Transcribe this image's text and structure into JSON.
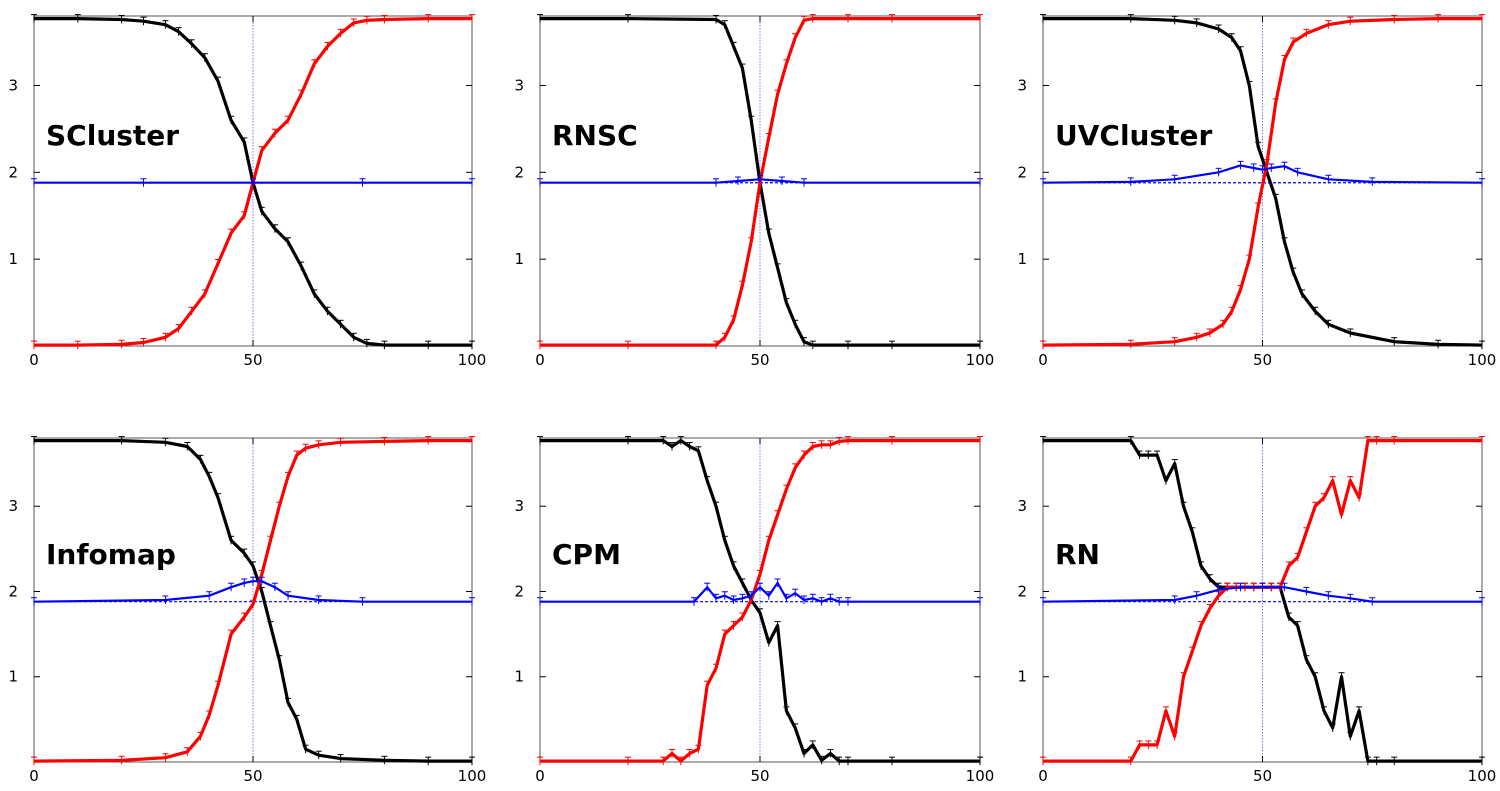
{
  "chart_data": [
    {
      "type": "line",
      "title": "SCluster",
      "xlim": [
        0,
        100
      ],
      "ylim": [
        0,
        3.8
      ],
      "xticks": [
        "0",
        "50",
        "100"
      ],
      "yticks": [
        "1",
        "2",
        "3"
      ],
      "grid": false,
      "reference_line_x": 50,
      "series": [
        {
          "color": "#000000",
          "x": [
            0,
            10,
            20,
            25,
            30,
            33,
            36,
            39,
            42,
            45,
            48,
            50,
            52,
            55,
            58,
            61,
            64,
            67,
            70,
            73,
            76,
            80,
            90,
            100
          ],
          "y": [
            3.77,
            3.77,
            3.76,
            3.74,
            3.7,
            3.62,
            3.48,
            3.32,
            3.05,
            2.6,
            2.35,
            1.88,
            1.55,
            1.35,
            1.2,
            0.92,
            0.6,
            0.4,
            0.25,
            0.1,
            0.03,
            0.01,
            0.01,
            0.01
          ]
        },
        {
          "color": "#ff0000",
          "x": [
            0,
            10,
            20,
            25,
            30,
            33,
            36,
            39,
            42,
            45,
            48,
            50,
            52,
            55,
            58,
            61,
            64,
            67,
            70,
            73,
            76,
            80,
            90,
            100
          ],
          "y": [
            0.01,
            0.01,
            0.02,
            0.04,
            0.1,
            0.2,
            0.4,
            0.6,
            0.95,
            1.3,
            1.5,
            1.88,
            2.25,
            2.45,
            2.6,
            2.9,
            3.25,
            3.45,
            3.6,
            3.72,
            3.75,
            3.76,
            3.77,
            3.77
          ]
        },
        {
          "color": "#0000ff",
          "x": [
            0,
            25,
            50,
            75,
            100
          ],
          "y": [
            1.88,
            1.88,
            1.88,
            1.88,
            1.88
          ]
        }
      ]
    },
    {
      "type": "line",
      "title": "RNSC",
      "xlim": [
        0,
        100
      ],
      "ylim": [
        0,
        3.8
      ],
      "xticks": [
        "0",
        "50",
        "100"
      ],
      "yticks": [
        "1",
        "2",
        "3"
      ],
      "grid": false,
      "reference_line_x": 50,
      "series": [
        {
          "color": "#000000",
          "x": [
            0,
            20,
            40,
            42,
            44,
            46,
            48,
            50,
            52,
            54,
            56,
            58,
            60,
            62,
            70,
            80,
            100
          ],
          "y": [
            3.77,
            3.77,
            3.76,
            3.7,
            3.45,
            3.2,
            2.6,
            1.88,
            1.3,
            0.9,
            0.5,
            0.25,
            0.05,
            0.01,
            0.01,
            0.01,
            0.01
          ]
        },
        {
          "color": "#ff0000",
          "x": [
            0,
            20,
            40,
            42,
            44,
            46,
            48,
            50,
            52,
            54,
            56,
            58,
            60,
            62,
            70,
            80,
            100
          ],
          "y": [
            0.01,
            0.01,
            0.01,
            0.1,
            0.3,
            0.7,
            1.2,
            1.88,
            2.4,
            2.9,
            3.25,
            3.55,
            3.75,
            3.77,
            3.77,
            3.77,
            3.77
          ]
        },
        {
          "color": "#0000ff",
          "x": [
            0,
            40,
            45,
            50,
            55,
            60,
            100
          ],
          "y": [
            1.88,
            1.88,
            1.9,
            1.92,
            1.9,
            1.88,
            1.88
          ]
        }
      ]
    },
    {
      "type": "line",
      "title": "UVCluster",
      "xlim": [
        0,
        100
      ],
      "ylim": [
        0,
        3.8
      ],
      "xticks": [
        "0",
        "50",
        "100"
      ],
      "yticks": [
        "1",
        "2",
        "3"
      ],
      "grid": false,
      "reference_line_x": 50,
      "series": [
        {
          "color": "#000000",
          "x": [
            0,
            20,
            30,
            35,
            40,
            43,
            45,
            47,
            49,
            51,
            53,
            55,
            57,
            59,
            62,
            65,
            70,
            80,
            90,
            100
          ],
          "y": [
            3.77,
            3.77,
            3.75,
            3.72,
            3.65,
            3.55,
            3.4,
            3.0,
            2.3,
            2.0,
            1.7,
            1.2,
            0.85,
            0.6,
            0.4,
            0.25,
            0.15,
            0.05,
            0.02,
            0.01
          ]
        },
        {
          "color": "#ff0000",
          "x": [
            0,
            20,
            30,
            35,
            38,
            41,
            43,
            45,
            47,
            49,
            51,
            53,
            55,
            57,
            60,
            65,
            70,
            80,
            90,
            100
          ],
          "y": [
            0.01,
            0.02,
            0.05,
            0.1,
            0.15,
            0.25,
            0.4,
            0.65,
            1.0,
            1.6,
            2.1,
            2.8,
            3.3,
            3.5,
            3.6,
            3.7,
            3.74,
            3.76,
            3.77,
            3.77
          ]
        },
        {
          "color": "#0000ff",
          "x": [
            0,
            20,
            30,
            40,
            45,
            48,
            50,
            52,
            55,
            58,
            65,
            75,
            100
          ],
          "y": [
            1.88,
            1.89,
            1.92,
            2.0,
            2.08,
            2.05,
            2.03,
            2.05,
            2.07,
            2.0,
            1.92,
            1.89,
            1.88
          ]
        }
      ]
    },
    {
      "type": "line",
      "title": "Infomap",
      "xlim": [
        0,
        100
      ],
      "ylim": [
        0,
        3.8
      ],
      "xticks": [
        "0",
        "50",
        "100"
      ],
      "yticks": [
        "1",
        "2",
        "3"
      ],
      "grid": false,
      "reference_line_x": 50,
      "series": [
        {
          "color": "#000000",
          "x": [
            0,
            20,
            30,
            35,
            38,
            40,
            42,
            45,
            48,
            50,
            52,
            54,
            56,
            58,
            60,
            62,
            65,
            70,
            80,
            90,
            100
          ],
          "y": [
            3.77,
            3.77,
            3.75,
            3.7,
            3.55,
            3.35,
            3.1,
            2.6,
            2.45,
            2.3,
            2.0,
            1.6,
            1.2,
            0.7,
            0.5,
            0.15,
            0.08,
            0.04,
            0.02,
            0.01,
            0.01
          ]
        },
        {
          "color": "#ff0000",
          "x": [
            0,
            20,
            30,
            35,
            38,
            40,
            42,
            45,
            48,
            50,
            52,
            54,
            56,
            58,
            60,
            62,
            65,
            70,
            80,
            90,
            100
          ],
          "y": [
            0.01,
            0.02,
            0.05,
            0.12,
            0.3,
            0.55,
            0.9,
            1.5,
            1.7,
            1.85,
            2.2,
            2.6,
            3.0,
            3.35,
            3.6,
            3.68,
            3.72,
            3.75,
            3.76,
            3.77,
            3.77
          ]
        },
        {
          "color": "#0000ff",
          "x": [
            0,
            30,
            40,
            45,
            48,
            50,
            52,
            55,
            58,
            65,
            75,
            100
          ],
          "y": [
            1.88,
            1.9,
            1.95,
            2.05,
            2.1,
            2.12,
            2.12,
            2.05,
            1.95,
            1.9,
            1.88,
            1.88
          ]
        }
      ]
    },
    {
      "type": "line",
      "title": "CPM",
      "xlim": [
        0,
        100
      ],
      "ylim": [
        0,
        3.8
      ],
      "xticks": [
        "0",
        "50",
        "100"
      ],
      "yticks": [
        "1",
        "2",
        "3"
      ],
      "grid": false,
      "reference_line_x": 50,
      "series": [
        {
          "color": "#000000",
          "x": [
            0,
            20,
            28,
            30,
            32,
            34,
            36,
            38,
            40,
            42,
            44,
            46,
            48,
            50,
            52,
            54,
            56,
            58,
            60,
            62,
            64,
            66,
            68,
            70,
            80,
            100
          ],
          "y": [
            3.77,
            3.77,
            3.77,
            3.7,
            3.77,
            3.7,
            3.65,
            3.3,
            3.0,
            2.6,
            2.3,
            2.1,
            1.9,
            1.75,
            1.4,
            1.6,
            0.6,
            0.4,
            0.1,
            0.2,
            0.02,
            0.1,
            0.01,
            0.01,
            0.01,
            0.01
          ]
        },
        {
          "color": "#ff0000",
          "x": [
            0,
            20,
            28,
            30,
            32,
            34,
            36,
            38,
            40,
            42,
            44,
            46,
            48,
            50,
            52,
            54,
            56,
            58,
            60,
            62,
            64,
            66,
            68,
            70,
            80,
            100
          ],
          "y": [
            0.01,
            0.01,
            0.01,
            0.1,
            0.01,
            0.1,
            0.15,
            0.9,
            1.1,
            1.5,
            1.6,
            1.7,
            1.9,
            2.2,
            2.6,
            2.9,
            3.2,
            3.45,
            3.6,
            3.7,
            3.72,
            3.72,
            3.76,
            3.77,
            3.77,
            3.77
          ]
        },
        {
          "color": "#0000ff",
          "x": [
            0,
            35,
            38,
            40,
            42,
            44,
            46,
            48,
            50,
            52,
            54,
            56,
            58,
            60,
            62,
            64,
            66,
            68,
            70,
            100
          ],
          "y": [
            1.88,
            1.88,
            2.05,
            1.92,
            1.95,
            1.9,
            1.92,
            1.95,
            2.05,
            1.95,
            2.1,
            1.92,
            1.98,
            1.9,
            1.92,
            1.88,
            1.92,
            1.88,
            1.88,
            1.88
          ]
        }
      ]
    },
    {
      "type": "line",
      "title": "RN",
      "xlim": [
        0,
        100
      ],
      "ylim": [
        0,
        3.8
      ],
      "xticks": [
        "0",
        "50",
        "100"
      ],
      "yticks": [
        "1",
        "2",
        "3"
      ],
      "grid": false,
      "reference_line_x": 50,
      "series": [
        {
          "color": "#000000",
          "x": [
            0,
            20,
            22,
            24,
            26,
            28,
            30,
            32,
            34,
            36,
            38,
            40,
            42,
            44,
            46,
            48,
            50,
            52,
            54,
            56,
            58,
            60,
            62,
            64,
            66,
            68,
            70,
            72,
            74,
            76,
            80,
            100
          ],
          "y": [
            3.77,
            3.77,
            3.6,
            3.6,
            3.6,
            3.3,
            3.5,
            3.0,
            2.7,
            2.3,
            2.15,
            2.05,
            2.05,
            2.05,
            2.05,
            2.05,
            2.05,
            2.05,
            2.05,
            1.7,
            1.6,
            1.2,
            1.0,
            0.6,
            0.4,
            1.0,
            0.3,
            0.6,
            0.01,
            0.01,
            0.01,
            0.01
          ]
        },
        {
          "color": "#ff0000",
          "x": [
            0,
            20,
            22,
            24,
            26,
            28,
            30,
            32,
            34,
            36,
            38,
            40,
            42,
            44,
            46,
            48,
            50,
            52,
            54,
            56,
            58,
            60,
            62,
            64,
            66,
            68,
            70,
            72,
            74,
            76,
            80,
            100
          ],
          "y": [
            0.01,
            0.01,
            0.2,
            0.2,
            0.2,
            0.6,
            0.3,
            1.0,
            1.3,
            1.6,
            1.8,
            1.95,
            2.05,
            2.05,
            2.05,
            2.05,
            2.05,
            2.05,
            2.05,
            2.3,
            2.4,
            2.7,
            3.0,
            3.1,
            3.3,
            2.9,
            3.3,
            3.1,
            3.77,
            3.77,
            3.77,
            3.77
          ]
        },
        {
          "color": "#0000ff",
          "x": [
            0,
            30,
            35,
            40,
            45,
            50,
            55,
            60,
            65,
            70,
            75,
            100
          ],
          "y": [
            1.88,
            1.9,
            1.95,
            2.02,
            2.05,
            2.05,
            2.05,
            2.0,
            1.95,
            1.92,
            1.88,
            1.88
          ]
        }
      ]
    }
  ]
}
